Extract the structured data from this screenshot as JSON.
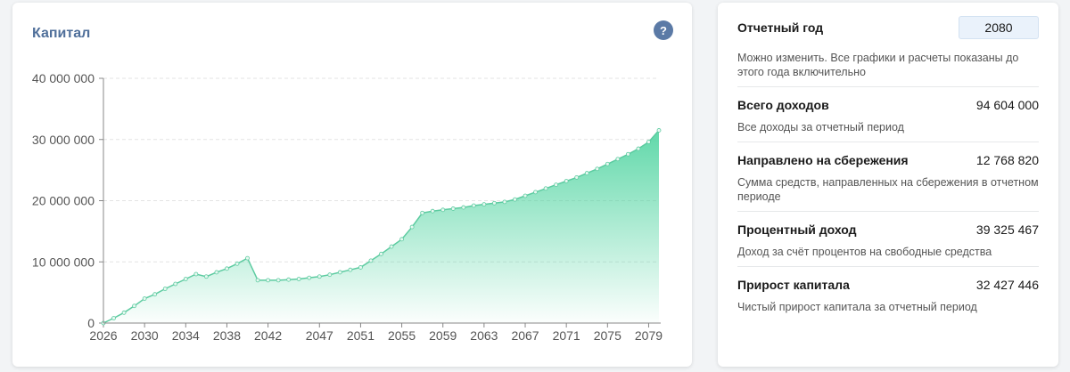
{
  "chart_data": {
    "type": "area",
    "title": "Капитал",
    "help": "?",
    "x": [
      2026,
      2027,
      2028,
      2029,
      2030,
      2031,
      2032,
      2033,
      2034,
      2035,
      2036,
      2037,
      2038,
      2039,
      2040,
      2041,
      2042,
      2043,
      2044,
      2045,
      2046,
      2047,
      2048,
      2049,
      2050,
      2051,
      2052,
      2053,
      2054,
      2055,
      2056,
      2057,
      2058,
      2059,
      2060,
      2061,
      2062,
      2063,
      2064,
      2065,
      2066,
      2067,
      2068,
      2069,
      2070,
      2071,
      2072,
      2073,
      2074,
      2075,
      2076,
      2077,
      2078,
      2079,
      2080
    ],
    "series": [
      {
        "color": "#5ccba0",
        "values": [
          0,
          800000,
          1700000,
          2800000,
          4000000,
          4700000,
          5600000,
          6400000,
          7200000,
          8000000,
          7600000,
          8300000,
          8900000,
          9700000,
          10600000,
          7000000,
          7000000,
          7000000,
          7100000,
          7200000,
          7400000,
          7600000,
          7900000,
          8300000,
          8700000,
          9100000,
          10200000,
          11300000,
          12500000,
          13700000,
          15700000,
          18000000,
          18300000,
          18500000,
          18700000,
          18900000,
          19200000,
          19400000,
          19600000,
          19800000,
          20200000,
          20800000,
          21400000,
          22000000,
          22600000,
          23200000,
          23800000,
          24500000,
          25200000,
          26000000,
          26800000,
          27600000,
          28500000,
          29600000,
          31500000
        ]
      }
    ],
    "xlim": [
      2026,
      2080
    ],
    "xticks": [
      2026,
      2030,
      2034,
      2038,
      2042,
      2047,
      2051,
      2055,
      2059,
      2063,
      2067,
      2071,
      2075,
      2079
    ],
    "ylim": [
      0,
      40000000
    ],
    "yticks": [
      0,
      {
        "value": 10000000,
        "label": "10 000 000"
      },
      {
        "value": 20000000,
        "label": "20 000 000"
      },
      {
        "value": 30000000,
        "label": "30 000 000"
      },
      {
        "value": 40000000,
        "label": "40 000 000"
      }
    ],
    "grid": true
  },
  "panel": {
    "year_label": "Отчетный год",
    "year_value": "2080",
    "year_note": "Можно изменить. Все графики и расчеты показаны до этого года включительно",
    "items": [
      {
        "label": "Всего доходов",
        "value": "94 604 000",
        "description": "Все доходы за отчетный период"
      },
      {
        "label": "Направлено на сбережения",
        "value": "12 768 820",
        "description": "Сумма средств, направленных на сбережения в отчетном периоде"
      },
      {
        "label": "Процентный доход",
        "value": "39 325 467",
        "description": "Доход за счёт процентов на свободные средства"
      },
      {
        "label": "Прирост капитала",
        "value": "32 427 446",
        "description": "Чистый прирост капитала за отчетный период"
      }
    ]
  }
}
